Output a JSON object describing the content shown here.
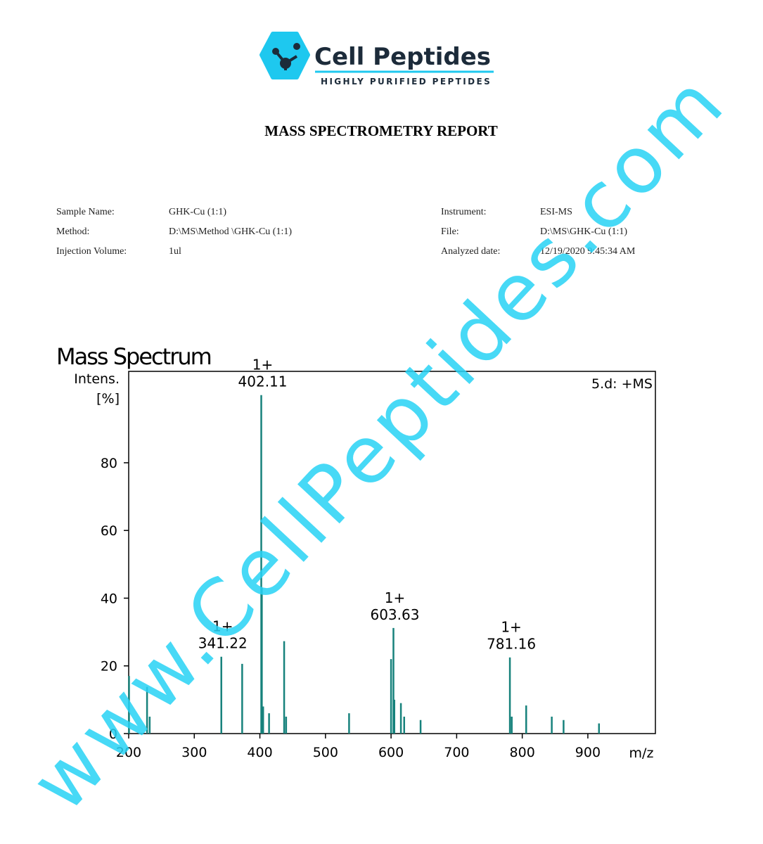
{
  "header": {
    "brand": "Cell Peptides",
    "tagline": "HIGHLY PURIFIED PEPTIDES",
    "title": "MASS SPECTROMETRY REPORT"
  },
  "info": {
    "left": [
      [
        "Sample Name:",
        "GHK-Cu (1:1)"
      ],
      [
        "Method:",
        "D:\\MS\\Method \\GHK-Cu (1:1)"
      ],
      [
        "Injection Volume:",
        "1ul"
      ]
    ],
    "right": [
      [
        "Instrument:",
        "ESI-MS"
      ],
      [
        "File:",
        "D:\\MS\\GHK-Cu (1:1)"
      ],
      [
        "Analyzed date:",
        "12/19/2020 9:45:34 AM"
      ]
    ]
  },
  "watermark": "www.CellPeptides.com",
  "chart_data": {
    "type": "stem",
    "title": "Mass Spectrum",
    "ylabel": [
      "Intens.",
      "[%]"
    ],
    "xlabel": "m/z",
    "annotation": "5.d: +MS",
    "color": "#17827c",
    "x": [
      200.5,
      228,
      232,
      341.22,
      373,
      402.11,
      403,
      405,
      414,
      437,
      440,
      536,
      600,
      603.63,
      605,
      615,
      620,
      645,
      781.16,
      784,
      806,
      845,
      863,
      917
    ],
    "values": [
      17,
      13.8,
      5,
      22.7,
      20.6,
      100,
      43,
      8,
      6,
      27.3,
      5,
      6,
      22,
      31.2,
      10,
      9,
      5,
      4,
      22.5,
      5,
      8.3,
      5,
      4,
      3
    ],
    "charges": [
      null,
      null,
      null,
      "1+",
      null,
      "1+",
      null,
      null,
      null,
      null,
      null,
      null,
      null,
      "1+",
      null,
      null,
      null,
      null,
      "1+",
      null,
      null,
      null,
      null,
      null
    ],
    "xlim": [
      200,
      1003
    ],
    "ylim": [
      0,
      107
    ],
    "xticks": [
      200,
      300,
      400,
      500,
      600,
      700,
      800,
      900
    ],
    "yticks": [
      0,
      20,
      40,
      60,
      80
    ]
  }
}
